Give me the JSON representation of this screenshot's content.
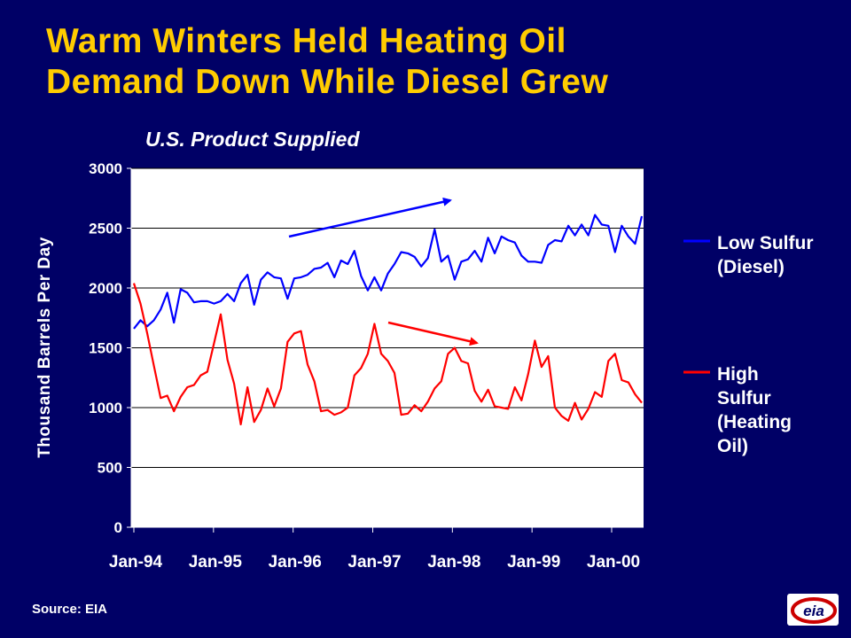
{
  "slide": {
    "title_line1": "Warm Winters Held Heating Oil",
    "title_line2": "Demand Down While Diesel Grew",
    "subtitle": "U.S. Product Supplied",
    "source": "Source: EIA",
    "logo_text": "eia"
  },
  "colors": {
    "background": "#000066",
    "title": "#ffcc00",
    "low_sulfur": "#0000ff",
    "high_sulfur": "#ff0000",
    "plot_bg": "#ffffff",
    "text": "#ffffff"
  },
  "chart_data": {
    "type": "line",
    "title": "U.S. Product Supplied",
    "ylabel": "Thousand Barrels Per Day",
    "xlabel": "",
    "ylim": [
      0,
      3000
    ],
    "yticks": [
      0,
      500,
      1000,
      1500,
      2000,
      2500,
      3000
    ],
    "ytick_labels": [
      "0",
      "500",
      "1000",
      "1500",
      "2000",
      "2500",
      "3000"
    ],
    "xtick_labels": [
      "Jan-94",
      "Jan-95",
      "Jan-96",
      "Jan-97",
      "Jan-98",
      "Jan-99",
      "Jan-00"
    ],
    "x_start": "1994-01",
    "x_end": "2000-05",
    "grid": "horizontal",
    "legend_position": "right",
    "series": [
      {
        "name": "Low Sulfur (Diesel)",
        "legend_lines": [
          "Low Sulfur",
          "(Diesel)"
        ],
        "color": "#0000ff",
        "values": [
          1660,
          1730,
          1680,
          1730,
          1820,
          1960,
          1710,
          1990,
          1960,
          1880,
          1890,
          1890,
          1870,
          1890,
          1950,
          1890,
          2040,
          2110,
          1860,
          2070,
          2130,
          2090,
          2080,
          1910,
          2080,
          2090,
          2110,
          2160,
          2170,
          2210,
          2090,
          2230,
          2200,
          2310,
          2100,
          1980,
          2090,
          1980,
          2120,
          2200,
          2300,
          2290,
          2260,
          2180,
          2250,
          2490,
          2220,
          2270,
          2070,
          2220,
          2240,
          2310,
          2220,
          2420,
          2290,
          2430,
          2400,
          2380,
          2270,
          2220,
          2220,
          2210,
          2360,
          2400,
          2390,
          2520,
          2440,
          2530,
          2440,
          2610,
          2530,
          2520,
          2300,
          2520,
          2430,
          2370,
          2600
        ]
      },
      {
        "name": "High Sulfur (Heating Oil)",
        "legend_lines": [
          "High",
          "Sulfur",
          "(Heating",
          "Oil)"
        ],
        "color": "#ff0000",
        "values": [
          2040,
          1870,
          1620,
          1350,
          1080,
          1100,
          970,
          1090,
          1170,
          1190,
          1270,
          1300,
          1540,
          1780,
          1400,
          1200,
          860,
          1170,
          880,
          980,
          1160,
          1010,
          1160,
          1550,
          1620,
          1640,
          1360,
          1220,
          970,
          980,
          940,
          960,
          1000,
          1270,
          1330,
          1450,
          1700,
          1450,
          1390,
          1290,
          940,
          950,
          1020,
          970,
          1050,
          1160,
          1220,
          1450,
          1500,
          1390,
          1370,
          1140,
          1050,
          1150,
          1010,
          1000,
          990,
          1170,
          1060,
          1280,
          1560,
          1340,
          1430,
          1000,
          930,
          890,
          1040,
          900,
          990,
          1130,
          1090,
          1390,
          1450,
          1230,
          1210,
          1110,
          1040
        ]
      }
    ],
    "annotations": [
      {
        "type": "arrow",
        "color": "#0000ff",
        "direction": "up",
        "description": "rising trend"
      },
      {
        "type": "arrow",
        "color": "#ff0000",
        "direction": "down",
        "description": "falling trend"
      }
    ]
  }
}
